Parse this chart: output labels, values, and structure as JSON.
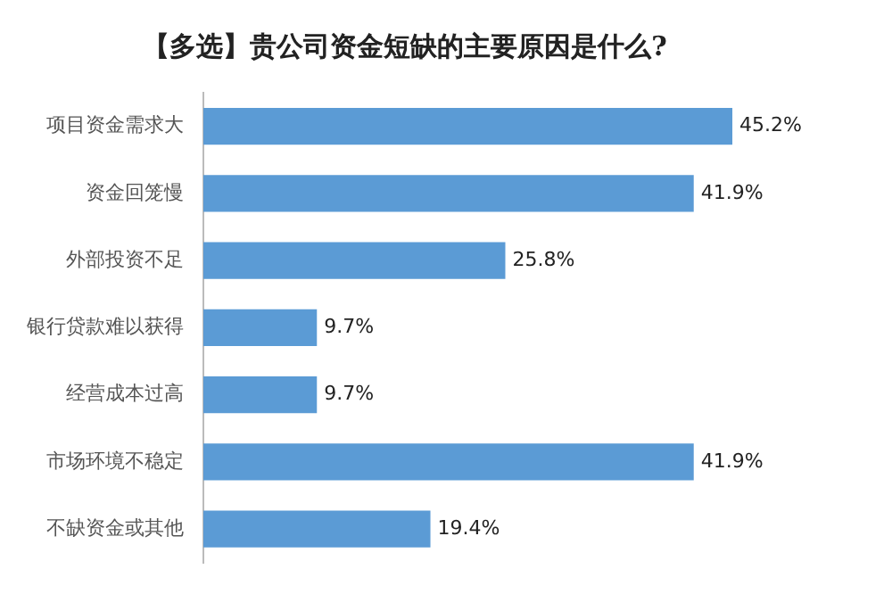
{
  "chart_data": {
    "type": "bar",
    "orientation": "horizontal",
    "title": "【多选】贵公司资金短缺的主要原因是什么?",
    "categories": [
      "项目资金需求大",
      "资金回笼慢",
      "外部投资不足",
      "银行贷款难以获得",
      "经营成本过高",
      "市场环境不稳定",
      "不缺资金或其他"
    ],
    "values": [
      45.2,
      41.9,
      25.8,
      9.7,
      9.7,
      41.9,
      19.4
    ],
    "value_labels": [
      "45.2%",
      "41.9%",
      "25.8%",
      "9.7%",
      "9.7%",
      "41.9%",
      "19.4%"
    ],
    "color": "#5b9bd5",
    "legend": false
  }
}
